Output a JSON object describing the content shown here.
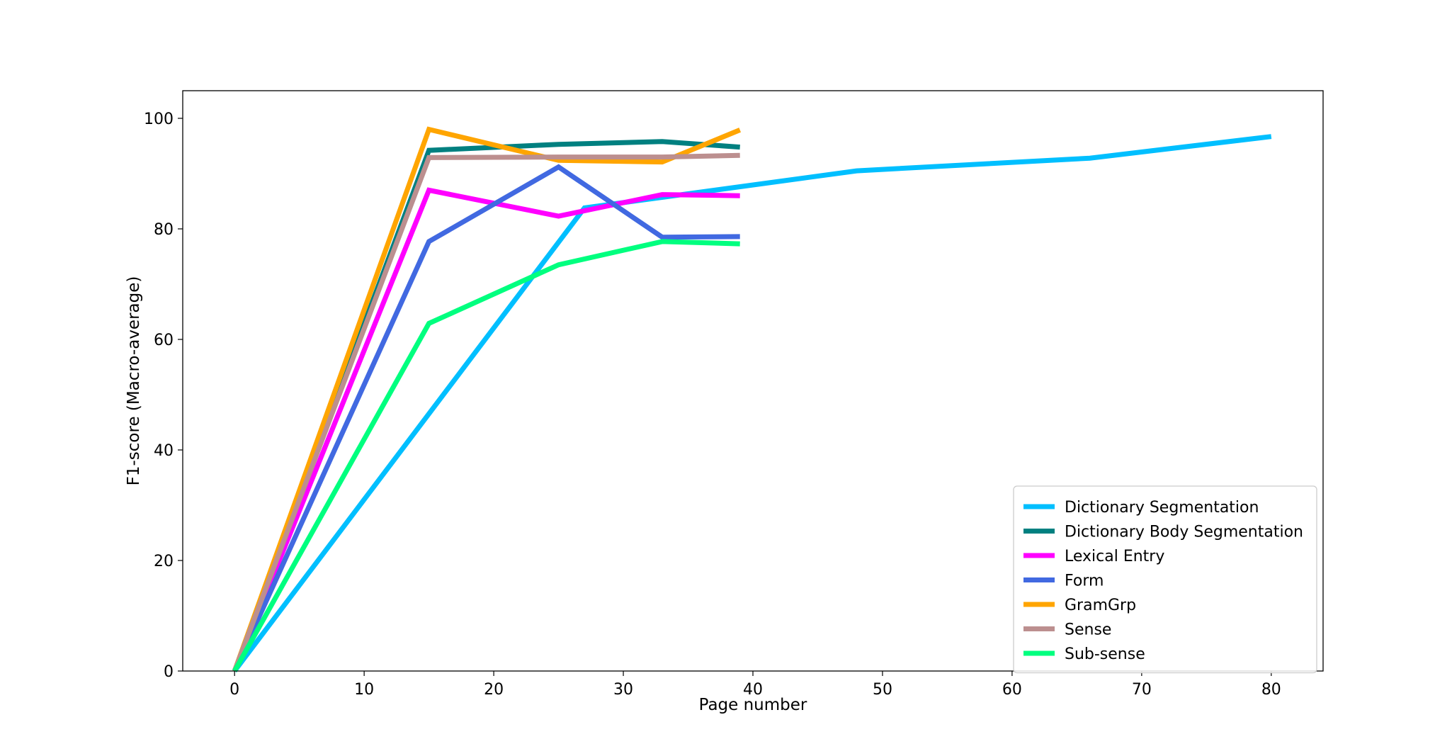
{
  "chart_data": {
    "type": "line",
    "title": "",
    "xlabel": "Page number",
    "ylabel": "F1-score (Macro-average)",
    "xlim": [
      -4,
      84
    ],
    "ylim": [
      0,
      105
    ],
    "xticks": [
      0,
      10,
      20,
      30,
      40,
      50,
      60,
      70,
      80
    ],
    "yticks": [
      0,
      20,
      40,
      60,
      80,
      100
    ],
    "grid": false,
    "legend_position": "lower-right",
    "series": [
      {
        "name": "Dictionary Segmentation",
        "color": "#00bfff",
        "x": [
          0,
          27,
          48,
          66,
          80
        ],
        "y": [
          0,
          83.8,
          90.5,
          92.8,
          96.7
        ]
      },
      {
        "name": "Dictionary Body Segmentation",
        "color": "#008080",
        "x": [
          0,
          15,
          25,
          33,
          39
        ],
        "y": [
          0,
          94.2,
          95.3,
          95.8,
          94.8
        ]
      },
      {
        "name": "Lexical Entry",
        "color": "#ff00ff",
        "x": [
          0,
          15,
          25,
          33,
          39
        ],
        "y": [
          0,
          87.0,
          82.3,
          86.2,
          86.0
        ]
      },
      {
        "name": "Form",
        "color": "#4169e1",
        "x": [
          0,
          15,
          25,
          33,
          39
        ],
        "y": [
          0,
          77.7,
          91.2,
          78.5,
          78.6
        ]
      },
      {
        "name": "GramGrp",
        "color": "#ffa500",
        "x": [
          0,
          15,
          25,
          33,
          39
        ],
        "y": [
          0,
          98.0,
          92.4,
          92.1,
          97.9
        ]
      },
      {
        "name": "Sense",
        "color": "#bc8f8f",
        "x": [
          0,
          15,
          25,
          33,
          39
        ],
        "y": [
          0,
          92.9,
          93.0,
          93.0,
          93.3
        ]
      },
      {
        "name": "Sub-sense",
        "color": "#00ff7f",
        "x": [
          0,
          15,
          25,
          33,
          39
        ],
        "y": [
          0,
          62.9,
          73.5,
          77.7,
          77.3
        ]
      }
    ]
  }
}
